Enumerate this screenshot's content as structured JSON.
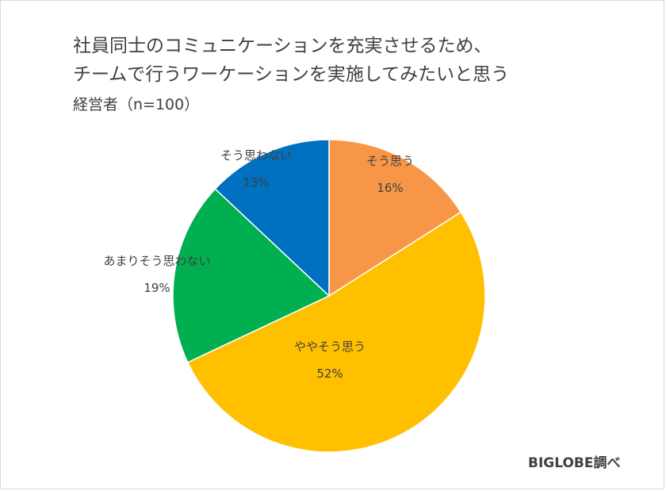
{
  "chart_data": {
    "type": "pie",
    "title_lines": [
      "社員同士のコミュニケーションを充実させるため、",
      "チームで行うワーケーションを実施してみたいと思う"
    ],
    "subtitle": "経営者（n=100）",
    "slices": [
      {
        "label": "そう思う",
        "value": 16,
        "value_label": "16%",
        "color": "#F79646"
      },
      {
        "label": "ややそう思う",
        "value": 52,
        "value_label": "52%",
        "color": "#FFC000"
      },
      {
        "label": "あまりそう思わない",
        "value": 19,
        "value_label": "19%",
        "color": "#00B050"
      },
      {
        "label": "そう思わない",
        "value": 13,
        "value_label": "13%",
        "color": "#0070C0"
      }
    ],
    "start_angle": "12 o'clock",
    "direction": "clockwise",
    "legend": "none",
    "source": "BIGLOBE調べ"
  }
}
